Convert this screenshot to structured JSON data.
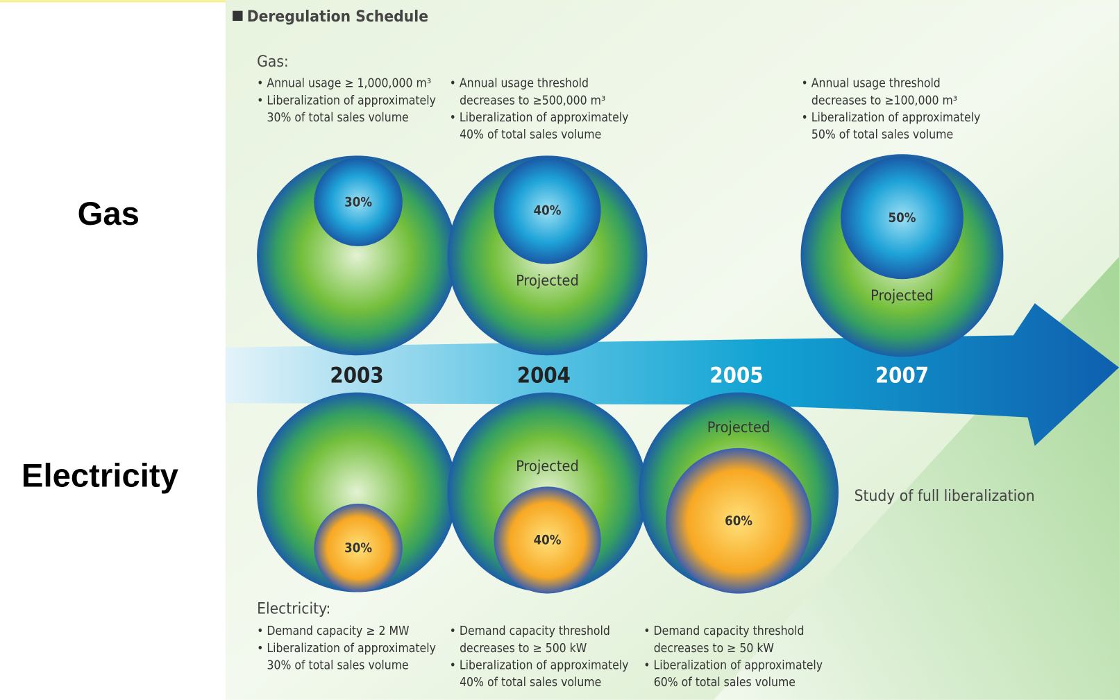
{
  "title": "Deregulation Schedule",
  "side_labels": [
    "Gas",
    "Electricity"
  ],
  "gas": {
    "heading": "Gas:",
    "notes": [
      [
        [
          "• Annual usage ≥ 1,000,000 m³"
        ],
        [
          "• Liberalization of approximately",
          "30% of total sales volume"
        ]
      ],
      [
        [
          "• Annual usage threshold",
          "decreases to ≥500,000 m³"
        ],
        [
          "• Liberalization of approximately",
          "40% of total sales volume"
        ]
      ],
      [
        [
          "• Annual usage threshold",
          "decreases to ≥100,000 m³"
        ],
        [
          "• Liberalization of approximately",
          "50% of total sales volume"
        ]
      ]
    ],
    "circles": [
      {
        "share": "30%"
      },
      {
        "share": "40%",
        "status": "Projected"
      },
      {
        "share": "50%",
        "status": "Projected"
      }
    ]
  },
  "years": [
    "2003",
    "2004",
    "2005",
    "2007"
  ],
  "electricity": {
    "heading": "Electricity:",
    "notes": [
      [
        [
          "• Demand capacity ≥ 2 MW"
        ],
        [
          "• Liberalization of approximately",
          "30% of total sales volume"
        ]
      ],
      [
        [
          "• Demand capacity threshold",
          "decreases to ≥ 500 kW"
        ],
        [
          "• Liberalization of approximately",
          "40% of total sales volume"
        ]
      ],
      [
        [
          "• Demand capacity threshold",
          "decreases to ≥ 50 kW"
        ],
        [
          "• Liberalization of approximately",
          "60% of total sales volume"
        ]
      ]
    ],
    "circles": [
      {
        "share": "30%"
      },
      {
        "share": "40%",
        "status": "Projected"
      },
      {
        "share": "60%",
        "status": "Projected"
      }
    ]
  },
  "conclusion": "Study of full liberalization"
}
